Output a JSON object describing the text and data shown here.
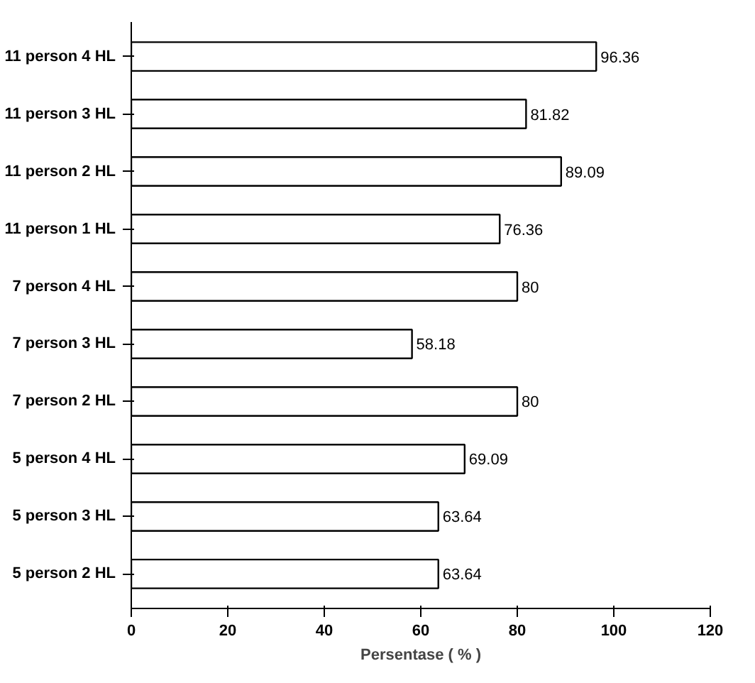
{
  "chart_data": {
    "type": "bar",
    "orientation": "horizontal",
    "xlabel": "Persentase ( % )",
    "categories": [
      "11 person 4 HL",
      "11 person 3 HL",
      "11 person 2 HL",
      "11 person 1 HL",
      "7 person 4 HL",
      "7 person 3 HL",
      "7 person 2 HL",
      "5 person 4 HL",
      "5 person 3 HL",
      "5 person 2 HL"
    ],
    "values": [
      96.36,
      81.82,
      89.09,
      76.36,
      80,
      58.18,
      80,
      69.09,
      63.64,
      63.64
    ],
    "color": "#ffffff",
    "data_labels": true,
    "xlim": [
      0,
      120
    ],
    "xticks": [
      0,
      20,
      40,
      60,
      80,
      100,
      120
    ],
    "grid": false
  }
}
